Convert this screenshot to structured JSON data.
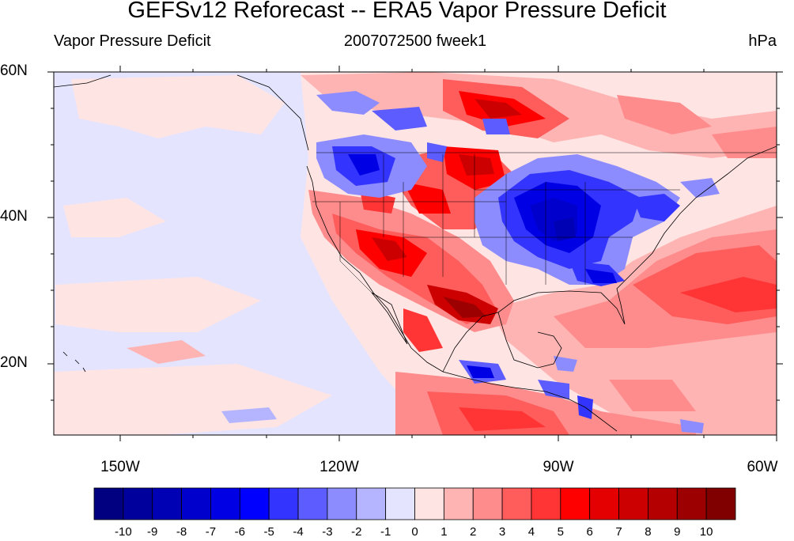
{
  "title": "GEFSv12 Reforecast -- ERA5 Vapor Pressure Deficit",
  "left_string": "Vapor Pressure Deficit",
  "center_string": "2007072500 fweek1",
  "right_string": "hPa",
  "lat_labels": [
    "60N",
    "40N",
    "20N"
  ],
  "lon_labels": [
    "150W",
    "120W",
    "90W",
    "60W"
  ],
  "colorbar": {
    "labels": [
      "-10",
      "-9",
      "-8",
      "-7",
      "-6",
      "-5",
      "-4",
      "-3",
      "-2",
      "-1",
      "0",
      "1",
      "2",
      "3",
      "4",
      "5",
      "6",
      "7",
      "8",
      "9",
      "10"
    ],
    "colors": [
      "#000080",
      "#00009c",
      "#0000b4",
      "#0000cc",
      "#0000e4",
      "#0000ff",
      "#3434ff",
      "#5c5cff",
      "#8c8cff",
      "#b4b4ff",
      "#e4e4ff",
      "#ffe4e4",
      "#ffb4b4",
      "#ff8c8c",
      "#ff5c5c",
      "#ff3434",
      "#ff0000",
      "#e40000",
      "#cc0000",
      "#b40000",
      "#9c0000",
      "#800000"
    ]
  }
}
